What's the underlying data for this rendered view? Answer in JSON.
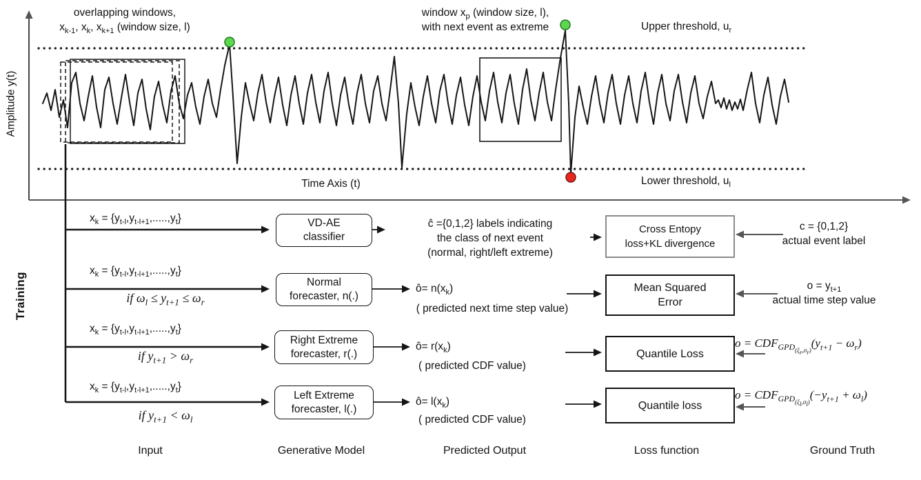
{
  "colors": {
    "stroke": "#151515",
    "axis": "#444444",
    "upper_marker": "#5fd64f",
    "upper_marker_edge": "#1f7a1f",
    "lower_marker": "#e8281e",
    "lower_marker_edge": "#7a1010"
  },
  "plot": {
    "y_axis_label": "Amplitude y(t)",
    "x_axis_label": "Time Axis  (t)",
    "upper_threshold": "Upper threshold, u<sub>r</sub>",
    "lower_threshold": "Lower threshold, u<sub>l</sub>",
    "overlapping_annotation": "overlapping windows,<br>x<sub>k-1</sub>, x<sub>k</sub>, x<sub>k+1</sub> (window size, l)",
    "window_p_annotation": "window x<sub>p</sub> (window size, l),<br>with next event as extreme"
  },
  "training_label": "Training",
  "rows": [
    {
      "input": "x<sub>k</sub> = {y<sub>t-l</sub>,y<sub>t-l+1</sub>,.....,y<sub>t</sub>}",
      "condition": "",
      "model": "VD-AE<br>classifier",
      "predicted_main": "ĉ ={0,1,2} labels indicating<br>the class of next event<br>(normal, right/left extreme)",
      "loss": "Cross Entopy<br>loss+KL divergence",
      "ground_truth": "c = {0,1,2}<br>actual event label"
    },
    {
      "input": "x<sub>k</sub> = {y<sub>t-l</sub>,y<sub>t-l+1</sub>,.....,y<sub>t</sub>}",
      "condition": "if ω<sub>l</sub> ≤ y<sub>t+1</sub> ≤ ω<sub>r</sub>",
      "model": "Normal<br>forecaster, n(.)",
      "predicted_main": "ô= n(x<sub>k</sub>)",
      "predicted_note": "( predicted next time step value)",
      "loss": "Mean Squared<br>Error",
      "ground_truth": "o = y<sub>t+1</sub><br>actual time step value"
    },
    {
      "input": "x<sub>k</sub> = {y<sub>t-l</sub>,y<sub>t-l+1</sub>,.....,y<sub>t</sub>}",
      "condition": "if y<sub>t+1</sub> &gt; ω<sub>r</sub>",
      "model": "Right Extreme<br>forecaster, r(.)",
      "predicted_main": "ô= r(x<sub>k</sub>)",
      "predicted_note": "( predicted CDF value)",
      "loss": "Quantile Loss",
      "ground_truth": "o = CDF<sub>GPD<sub>(ξ<sub>r</sub>,σ<sub>r</sub>)</sub></sub>(y<sub>t+1</sub> − ω<sub>r</sub>)"
    },
    {
      "input": "x<sub>k</sub> = {y<sub>t-l</sub>,y<sub>t-l+1</sub>,.....,y<sub>t</sub>}",
      "condition": "if y<sub>t+1</sub> &lt; ω<sub>l</sub>",
      "model": "Left Extreme<br>forecaster, l(.)",
      "predicted_main": "ô= l(x<sub>k</sub>)",
      "predicted_note": "( predicted CDF value)",
      "loss": "Quantile loss",
      "ground_truth": "o = CDF<sub>GPD<sub>(ξ<sub>l</sub>,σ<sub>l</sub>)</sub></sub>(−y<sub>t+1</sub> + ω<sub>l</sub>)"
    }
  ],
  "footers": {
    "input": "Input",
    "model": "Generative Model",
    "predicted": "Predicted Output",
    "loss": "Loss function",
    "ground_truth": "Ground Truth"
  }
}
